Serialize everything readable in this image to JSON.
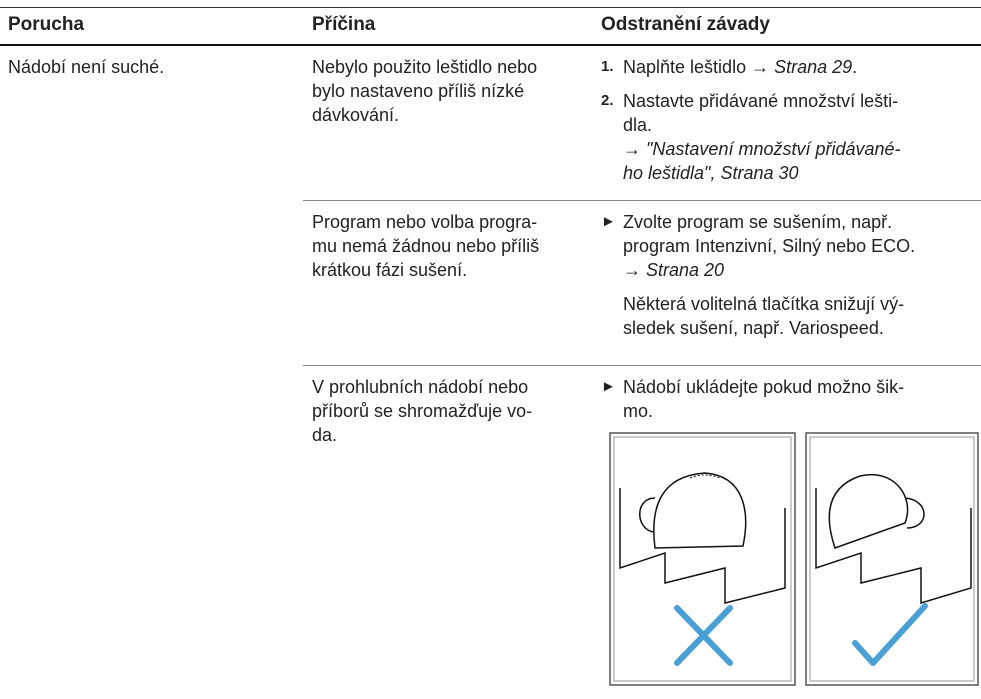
{
  "header": {
    "columns": [
      "Porucha",
      "Příčina",
      "Odstranění závady"
    ]
  },
  "rows": [
    {
      "fault": "Nádobí není suché.",
      "causes": [
        {
          "cause": [
            "Nebylo použito leštidlo nebo",
            "bylo nastaveno příliš nízké",
            "dávkování."
          ],
          "remedy": [
            {
              "marker": "1.",
              "lines": [
                [
                  {
                    "t": "Naplňte leštidlo → "
                  },
                  {
                    "t": "Strana 29",
                    "italic": true
                  },
                  {
                    "t": "."
                  }
                ]
              ]
            },
            {
              "marker": "2.",
              "lines": [
                [
                  {
                    "t": "Nastavte přidávané množství lešti-"
                  }
                ],
                [
                  {
                    "t": "dla."
                  }
                ],
                [
                  {
                    "t": "→ "
                  },
                  {
                    "t": "\"Nastavení množství přidávané-",
                    "italic": true
                  }
                ],
                [
                  {
                    "t": "ho leštidla\", Strana 30",
                    "italic": true
                  }
                ]
              ]
            }
          ]
        },
        {
          "cause": [
            "Program nebo volba progra-",
            "mu nemá žádnou nebo příliš",
            "krátkou fázi sušení."
          ],
          "remedy": [
            {
              "marker": "►",
              "lines": [
                [
                  {
                    "t": "Zvolte program se sušením, např."
                  }
                ],
                [
                  {
                    "t": "program Intenzivní, Silný nebo ECO."
                  }
                ],
                [
                  {
                    "t": "→ "
                  },
                  {
                    "t": "Strana 20",
                    "italic": true
                  }
                ]
              ]
            },
            {
              "lines": [
                [
                  {
                    "t": "Některá volitelná tlačítka snižují vý-"
                  }
                ],
                [
                  {
                    "t": "sledek sušení, např. Variospeed."
                  }
                ]
              ]
            }
          ]
        },
        {
          "cause": [
            "V prohlubních nádobí nebo",
            "příborů se shromažďuje vo-",
            "da."
          ],
          "remedy": [
            {
              "marker": "►",
              "lines": [
                [
                  {
                    "t": "Nádobí ukládejte pokud možno šik-"
                  }
                ],
                [
                  {
                    "t": "mo."
                  }
                ]
              ]
            }
          ]
        }
      ]
    }
  ]
}
